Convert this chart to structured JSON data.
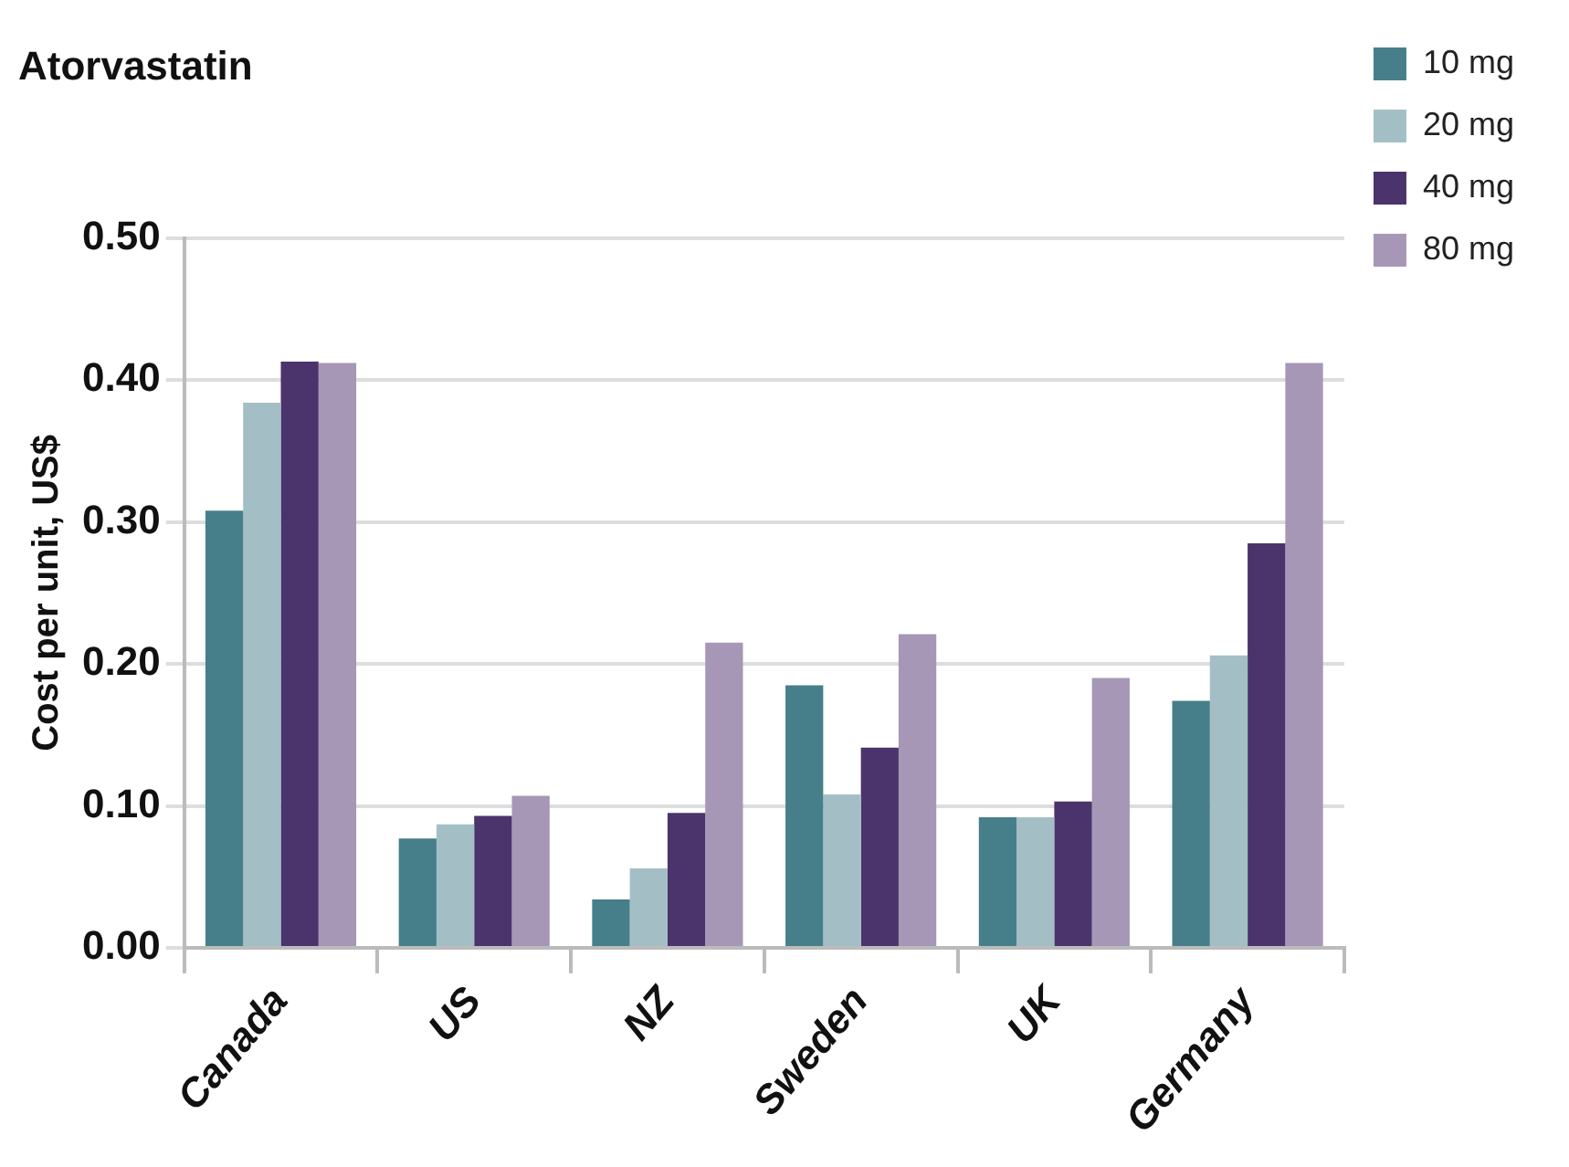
{
  "chart_data": {
    "type": "bar",
    "title": "Atorvastatin",
    "ylabel": "Cost per unit, US$",
    "categories": [
      "Canada",
      "US",
      "NZ",
      "Sweden",
      "UK",
      "Germany"
    ],
    "series": [
      {
        "name": "10 mg",
        "color": "#467f89",
        "values": [
          0.308,
          0.077,
          0.034,
          0.185,
          0.092,
          0.174
        ]
      },
      {
        "name": "20 mg",
        "color": "#a3bfc5",
        "values": [
          0.384,
          0.087,
          0.056,
          0.108,
          0.092,
          0.206
        ]
      },
      {
        "name": "40 mg",
        "color": "#4b336b",
        "values": [
          0.413,
          0.093,
          0.095,
          0.141,
          0.103,
          0.285
        ]
      },
      {
        "name": "80 mg",
        "color": "#a597b5",
        "values": [
          0.412,
          0.107,
          0.215,
          0.221,
          0.19,
          0.412
        ]
      }
    ],
    "ylim": [
      0,
      0.5
    ],
    "yticks": [
      {
        "value": 0,
        "label": "0.00"
      },
      {
        "value": 0.1,
        "label": "0.10"
      },
      {
        "value": 0.2,
        "label": "0.20"
      },
      {
        "value": 0.3,
        "label": "0.30"
      },
      {
        "value": 0.4,
        "label": "0.40"
      },
      {
        "value": 0.5,
        "label": "0.50"
      }
    ],
    "grid": "y",
    "legend": "right"
  }
}
